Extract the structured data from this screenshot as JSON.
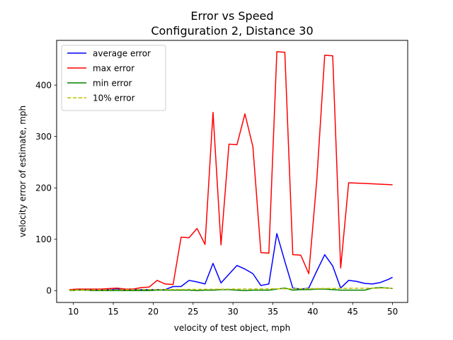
{
  "chart_data": {
    "type": "line",
    "title": "Error vs Speed",
    "subtitle": "Configuration 2, Distance 30",
    "xlabel": "velocity of test object, mph",
    "ylabel": "velocity error of estimate, mph",
    "xlim": [
      7.9,
      51.9
    ],
    "ylim": [
      -23,
      487
    ],
    "xticks": [
      10,
      15,
      20,
      25,
      30,
      35,
      40,
      45,
      50
    ],
    "yticks": [
      0,
      100,
      200,
      300,
      400
    ],
    "legend_position": "upper-left",
    "grid": false,
    "series": [
      {
        "name": "average error",
        "color": "#0000ff",
        "style": "solid",
        "x": [
          9.5,
          10.5,
          11.5,
          12.5,
          13.5,
          14.5,
          15.5,
          16.5,
          17.5,
          18.5,
          19.5,
          20.5,
          21.5,
          22.5,
          23.5,
          24.5,
          25.5,
          26.5,
          27.5,
          28.5,
          29.5,
          30.5,
          31.5,
          32.5,
          33.5,
          34.5,
          35.5,
          36.5,
          37.5,
          38.5,
          39.5,
          40.5,
          41.5,
          42.5,
          43.5,
          44.5,
          45.5,
          46.5,
          47.5,
          48.5,
          49.5,
          50.0
        ],
        "y": [
          2,
          2,
          2,
          2,
          2,
          2,
          3,
          2,
          2,
          2,
          2,
          2,
          2,
          8,
          8,
          20,
          17,
          13,
          53,
          15,
          32,
          49,
          42,
          33,
          10,
          13,
          111,
          57,
          5,
          3,
          5,
          38,
          70,
          48,
          5,
          20,
          18,
          14,
          13,
          16,
          22,
          26
        ]
      },
      {
        "name": "max error",
        "color": "#ff0000",
        "style": "solid",
        "x": [
          9.5,
          10.5,
          11.5,
          12.5,
          13.5,
          14.5,
          15.5,
          16.5,
          17.5,
          18.5,
          19.5,
          20.5,
          21.5,
          22.5,
          23.5,
          24.5,
          25.5,
          26.5,
          27.5,
          28.5,
          29.5,
          30.5,
          31.5,
          32.5,
          33.5,
          34.5,
          35.5,
          36.5,
          37.5,
          38.5,
          39.5,
          40.5,
          41.5,
          42.5,
          43.5,
          44.5,
          50.0
        ],
        "y": [
          2,
          3,
          3,
          3,
          3,
          4,
          5,
          3,
          3,
          6,
          7,
          20,
          13,
          12,
          104,
          103,
          121,
          90,
          347,
          89,
          285,
          284,
          344,
          280,
          74,
          73,
          465,
          464,
          70,
          69,
          33,
          214,
          458,
          457,
          44,
          210,
          206
        ]
      },
      {
        "name": "min error",
        "color": "#008000",
        "style": "solid",
        "x": [
          9.5,
          10.5,
          11.5,
          12.5,
          13.5,
          14.5,
          15.5,
          16.5,
          17.5,
          18.5,
          19.5,
          20.5,
          21.5,
          22.5,
          23.5,
          24.5,
          25.5,
          26.5,
          27.5,
          28.5,
          29.5,
          30.5,
          31.5,
          32.5,
          33.5,
          34.5,
          35.5,
          36.5,
          37.5,
          38.5,
          39.5,
          40.5,
          41.5,
          42.5,
          43.5,
          44.5,
          45.5,
          46.5,
          47.5,
          48.5,
          49.5,
          50.0
        ],
        "y": [
          0,
          1,
          1,
          0,
          0,
          0,
          0,
          0,
          0,
          0,
          0,
          1,
          1,
          1,
          1,
          1,
          0,
          1,
          1,
          2,
          2,
          1,
          0,
          1,
          1,
          1,
          3,
          5,
          1,
          2,
          2,
          3,
          3,
          2,
          1,
          1,
          1,
          1,
          5,
          6,
          5,
          4
        ]
      },
      {
        "name": "10% error",
        "color": "#bfbf00",
        "style": "dashed",
        "x": [
          9.5,
          10.5,
          11.5,
          12.5,
          13.5,
          14.5,
          15.5,
          16.5,
          17.5,
          18.5,
          19.5,
          20.5,
          21.5,
          22.5,
          23.5,
          24.5,
          25.5,
          26.5,
          27.5,
          28.5,
          29.5,
          30.5,
          31.5,
          32.5,
          33.5,
          34.5,
          35.5,
          36.5,
          37.5,
          38.5,
          39.5,
          40.5,
          41.5,
          42.5,
          43.5,
          44.5,
          45.5,
          46.5,
          47.5,
          48.5,
          49.5,
          50.0
        ],
        "y": [
          0.95,
          1.05,
          1.15,
          1.25,
          1.35,
          1.45,
          1.55,
          1.65,
          1.75,
          1.85,
          1.95,
          2.05,
          2.15,
          2.25,
          2.35,
          2.45,
          2.55,
          2.65,
          2.75,
          2.85,
          2.95,
          3.05,
          3.15,
          3.25,
          3.35,
          3.45,
          3.55,
          3.65,
          3.75,
          3.85,
          3.95,
          4.05,
          4.15,
          4.25,
          4.35,
          4.45,
          4.55,
          4.65,
          4.75,
          4.85,
          4.95,
          5.0
        ]
      }
    ]
  }
}
